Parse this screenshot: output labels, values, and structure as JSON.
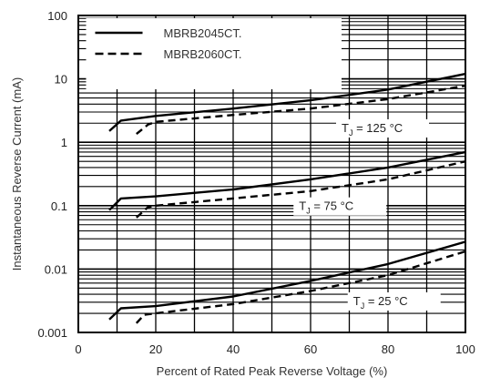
{
  "chart_data": {
    "type": "line",
    "title": "",
    "xlabel": "Percent of Rated Peak Reverse Voltage (%)",
    "ylabel": "Instantaneous Reverse Current (mA)",
    "xlim": [
      0,
      100
    ],
    "ylim": [
      0.001,
      100
    ],
    "yscale": "log",
    "grid": true,
    "legend_position": "top-left",
    "x_ticks": [
      "0",
      "20",
      "40",
      "60",
      "80",
      "100"
    ],
    "y_ticks": [
      "0.001",
      "0.01",
      "0.1",
      "1",
      "10",
      "100"
    ],
    "legend": [
      {
        "label": "MBRB2045CT.",
        "style": "solid"
      },
      {
        "label": "MBRB2060CT.",
        "style": "dashed"
      }
    ],
    "annotations": [
      {
        "text": "T",
        "subscript": "J",
        "suffix": " = 125 °C",
        "x": 68,
        "y": 1.45
      },
      {
        "text": "T",
        "subscript": "J",
        "suffix": " = 75 °C",
        "x": 57,
        "y": 0.085
      },
      {
        "text": "T",
        "subscript": "J",
        "suffix": " = 25 °C",
        "x": 71,
        "y": 0.0027
      }
    ],
    "series": [
      {
        "name": "MBRB2045CT.",
        "style": "solid",
        "temperature": "125 °C",
        "x": [
          8,
          11,
          20,
          40,
          60,
          80,
          100
        ],
        "y": [
          1.5,
          2.2,
          2.6,
          3.4,
          4.6,
          6.8,
          12
        ]
      },
      {
        "name": "MBRB2060CT.",
        "style": "dashed",
        "temperature": "125 °C",
        "x": [
          15,
          18,
          20,
          40,
          60,
          80,
          100
        ],
        "y": [
          1.35,
          1.9,
          2.1,
          2.7,
          3.4,
          4.8,
          7.8
        ]
      },
      {
        "name": "MBRB2045CT.",
        "style": "solid",
        "temperature": "75 °C",
        "x": [
          8,
          11,
          20,
          40,
          60,
          80,
          100
        ],
        "y": [
          0.085,
          0.13,
          0.14,
          0.18,
          0.26,
          0.4,
          0.7
        ]
      },
      {
        "name": "MBRB2060CT.",
        "style": "dashed",
        "temperature": "75 °C",
        "x": [
          15,
          18,
          20,
          40,
          60,
          80,
          100
        ],
        "y": [
          0.065,
          0.095,
          0.1,
          0.13,
          0.17,
          0.26,
          0.5
        ]
      },
      {
        "name": "MBRB2045CT.",
        "style": "solid",
        "temperature": "25 °C",
        "x": [
          8,
          11,
          20,
          40,
          60,
          80,
          100
        ],
        "y": [
          0.0016,
          0.0024,
          0.0026,
          0.0037,
          0.0065,
          0.012,
          0.027
        ]
      },
      {
        "name": "MBRB2060CT.",
        "style": "dashed",
        "temperature": "25 °C",
        "x": [
          15,
          17,
          20,
          40,
          60,
          80,
          100
        ],
        "y": [
          0.0014,
          0.0019,
          0.002,
          0.0028,
          0.0045,
          0.008,
          0.019
        ]
      }
    ]
  }
}
